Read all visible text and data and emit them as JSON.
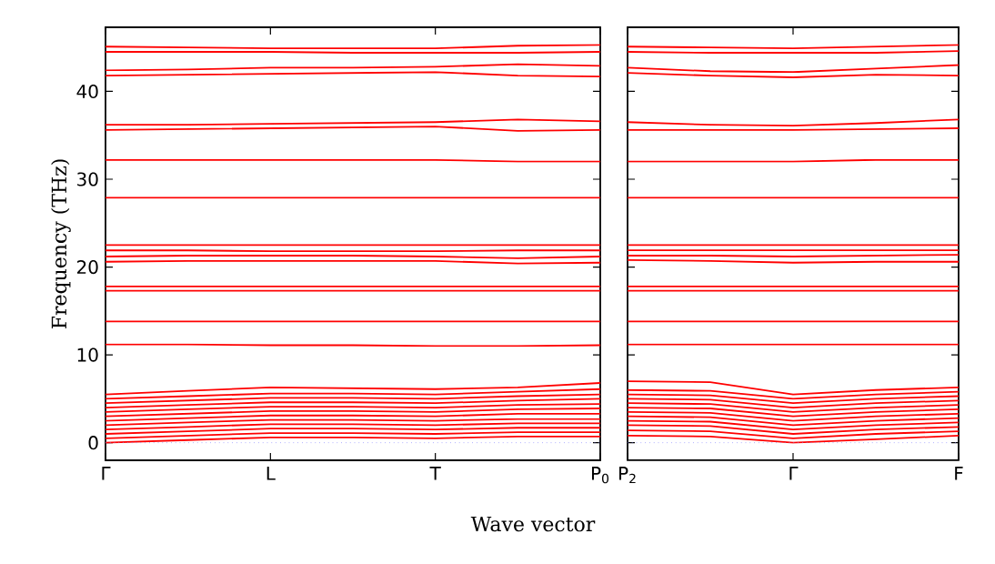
{
  "chart_data": [
    {
      "type": "line",
      "ylabel": "Frequency (THz)",
      "xlabel": "Wave vector",
      "color": "#ff0000",
      "line_style": "solid",
      "grid": false,
      "categories": [
        "Γ",
        null,
        "L",
        null,
        "T",
        null,
        "P$_{0}$"
      ],
      "ylim": [
        -2,
        47.3
      ],
      "yticks": [
        0,
        10,
        20,
        30,
        40
      ],
      "ref_lines": [
        {
          "axis": "y",
          "value": 0,
          "color": "#8080ff",
          "line_style": "dotted"
        }
      ],
      "series": [
        {
          "values": [
            45.1,
            45.0,
            44.9,
            44.9,
            44.9,
            45.2,
            45.3
          ]
        },
        {
          "values": [
            44.5,
            44.5,
            44.5,
            44.4,
            44.4,
            44.4,
            44.5
          ]
        },
        {
          "values": [
            42.4,
            42.5,
            42.7,
            42.7,
            42.8,
            43.1,
            42.9
          ]
        },
        {
          "values": [
            41.8,
            41.9,
            42.0,
            42.1,
            42.2,
            41.8,
            41.7
          ]
        },
        {
          "values": [
            36.2,
            36.2,
            36.3,
            36.4,
            36.5,
            36.8,
            36.6
          ]
        },
        {
          "values": [
            35.6,
            35.7,
            35.8,
            35.9,
            36.0,
            35.5,
            35.6
          ]
        },
        {
          "values": [
            32.2,
            32.2,
            32.2,
            32.2,
            32.2,
            32.0,
            32.0
          ]
        },
        {
          "values": [
            27.9,
            27.9,
            27.9,
            27.9,
            27.9,
            27.9,
            27.9
          ]
        },
        {
          "values": [
            22.5,
            22.5,
            22.5,
            22.5,
            22.5,
            22.5,
            22.5
          ]
        },
        {
          "values": [
            21.9,
            21.9,
            21.8,
            21.8,
            21.8,
            21.9,
            21.9
          ]
        },
        {
          "values": [
            21.2,
            21.3,
            21.3,
            21.3,
            21.2,
            21.0,
            21.2
          ]
        },
        {
          "values": [
            20.6,
            20.7,
            20.7,
            20.7,
            20.7,
            20.4,
            20.5
          ]
        },
        {
          "values": [
            17.8,
            17.8,
            17.8,
            17.8,
            17.8,
            17.8,
            17.8
          ]
        },
        {
          "values": [
            17.3,
            17.3,
            17.3,
            17.3,
            17.3,
            17.3,
            17.3
          ]
        },
        {
          "values": [
            13.8,
            13.8,
            13.8,
            13.8,
            13.8,
            13.8,
            13.8
          ]
        },
        {
          "values": [
            11.2,
            11.2,
            11.1,
            11.1,
            11.0,
            11.0,
            11.1
          ]
        },
        {
          "values": [
            5.5,
            5.9,
            6.3,
            6.2,
            6.1,
            6.3,
            6.8
          ]
        },
        {
          "values": [
            5.0,
            5.3,
            5.6,
            5.6,
            5.5,
            5.8,
            6.1
          ]
        },
        {
          "values": [
            4.5,
            4.8,
            5.1,
            5.1,
            5.0,
            5.3,
            5.5
          ]
        },
        {
          "values": [
            4.0,
            4.3,
            4.6,
            4.6,
            4.5,
            4.8,
            5.0
          ]
        },
        {
          "values": [
            3.5,
            3.8,
            4.1,
            4.1,
            4.0,
            4.3,
            4.4
          ]
        },
        {
          "values": [
            3.0,
            3.3,
            3.6,
            3.6,
            3.5,
            3.8,
            3.9
          ]
        },
        {
          "values": [
            2.5,
            2.8,
            3.1,
            3.1,
            3.0,
            3.3,
            3.3
          ]
        },
        {
          "values": [
            2.0,
            2.3,
            2.6,
            2.6,
            2.5,
            2.7,
            2.7
          ]
        },
        {
          "values": [
            1.5,
            1.8,
            2.1,
            2.1,
            2.0,
            2.2,
            2.2
          ]
        },
        {
          "values": [
            1.0,
            1.3,
            1.6,
            1.6,
            1.5,
            1.7,
            1.7
          ]
        },
        {
          "values": [
            0.5,
            0.8,
            1.1,
            1.1,
            1.0,
            1.2,
            1.2
          ]
        },
        {
          "values": [
            0,
            0.3,
            0.6,
            0.6,
            0.5,
            0.7,
            0.7
          ]
        }
      ]
    },
    {
      "type": "line",
      "color": "#ff0000",
      "line_style": "solid",
      "grid": false,
      "tick_labels": "x",
      "categories": [
        "P$_{2}$",
        null,
        "Γ",
        null,
        "F"
      ],
      "ylim": [
        -2,
        47.3
      ],
      "yticks": [
        0,
        10,
        20,
        30,
        40
      ],
      "ref_lines": [
        {
          "axis": "y",
          "value": 0,
          "color": "#8080ff",
          "line_style": "dotted"
        }
      ],
      "series": [
        {
          "values": [
            45.1,
            45.0,
            44.9,
            45.1,
            45.3
          ]
        },
        {
          "values": [
            44.5,
            44.4,
            44.4,
            44.4,
            44.6
          ]
        },
        {
          "values": [
            42.7,
            42.3,
            42.2,
            42.6,
            43.0
          ]
        },
        {
          "values": [
            42.1,
            41.8,
            41.6,
            41.9,
            41.8
          ]
        },
        {
          "values": [
            36.5,
            36.2,
            36.1,
            36.4,
            36.8
          ]
        },
        {
          "values": [
            35.6,
            35.6,
            35.6,
            35.7,
            35.8
          ]
        },
        {
          "values": [
            32.0,
            32.0,
            32.0,
            32.2,
            32.2
          ]
        },
        {
          "values": [
            27.9,
            27.9,
            27.9,
            27.9,
            27.9
          ]
        },
        {
          "values": [
            22.5,
            22.5,
            22.5,
            22.5,
            22.5
          ]
        },
        {
          "values": [
            21.9,
            21.9,
            21.9,
            21.9,
            21.9
          ]
        },
        {
          "values": [
            21.3,
            21.3,
            21.2,
            21.3,
            21.4
          ]
        },
        {
          "values": [
            20.8,
            20.7,
            20.5,
            20.6,
            20.6
          ]
        },
        {
          "values": [
            17.8,
            17.8,
            17.8,
            17.8,
            17.8
          ]
        },
        {
          "values": [
            17.3,
            17.3,
            17.3,
            17.3,
            17.3
          ]
        },
        {
          "values": [
            13.8,
            13.8,
            13.8,
            13.8,
            13.8
          ]
        },
        {
          "values": [
            11.2,
            11.2,
            11.2,
            11.2,
            11.2
          ]
        },
        {
          "values": [
            7.0,
            6.9,
            5.5,
            6.0,
            6.3
          ]
        },
        {
          "values": [
            6.0,
            5.9,
            5.0,
            5.5,
            5.8
          ]
        },
        {
          "values": [
            5.5,
            5.4,
            4.5,
            5.0,
            5.3
          ]
        },
        {
          "values": [
            5.0,
            4.9,
            4.0,
            4.5,
            4.8
          ]
        },
        {
          "values": [
            4.5,
            4.4,
            3.5,
            4.0,
            4.3
          ]
        },
        {
          "values": [
            4.0,
            3.9,
            3.0,
            3.5,
            3.8
          ]
        },
        {
          "values": [
            3.5,
            3.4,
            2.5,
            3.0,
            3.3
          ]
        },
        {
          "values": [
            3.0,
            2.9,
            2.0,
            2.5,
            2.8
          ]
        },
        {
          "values": [
            2.5,
            2.4,
            1.5,
            2.0,
            2.3
          ]
        },
        {
          "values": [
            2.0,
            1.9,
            1.0,
            1.5,
            1.8
          ]
        },
        {
          "values": [
            1.4,
            1.3,
            0.5,
            1.0,
            1.3
          ]
        },
        {
          "values": [
            0.8,
            0.7,
            0,
            0.4,
            0.8
          ]
        }
      ]
    }
  ]
}
